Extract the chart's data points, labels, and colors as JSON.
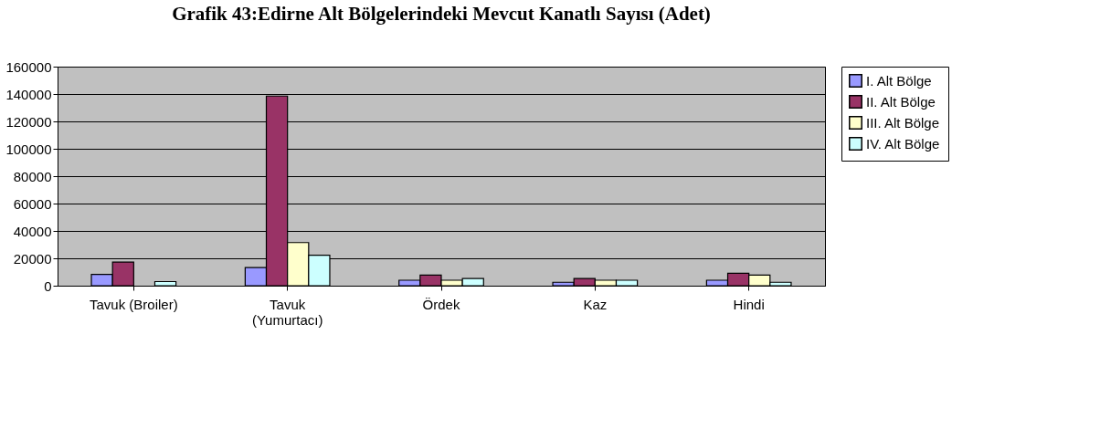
{
  "chart_data": {
    "type": "bar",
    "title": "Grafik 43:Edirne Alt Bölgelerindeki Mevcut Kanatlı Sayısı (Adet)",
    "categories": [
      "Tavuk (Broiler)",
      "Tavuk\n(Yumurtacı)",
      "Ördek",
      "Kaz",
      "Hindi"
    ],
    "series": [
      {
        "name": "I. Alt Bölge",
        "color": "#9999ff",
        "values": [
          8200,
          13300,
          4000,
          2500,
          4000
        ]
      },
      {
        "name": "II. Alt Bölge",
        "color": "#993366",
        "values": [
          17300,
          138500,
          7800,
          5300,
          9100
        ]
      },
      {
        "name": "III. Alt Bölge",
        "color": "#ffffcc",
        "values": [
          null,
          31500,
          4000,
          4000,
          7800
        ]
      },
      {
        "name": "IV. Alt Bölge",
        "color": "#ccffff",
        "values": [
          3000,
          22200,
          5300,
          4000,
          2500
        ]
      }
    ],
    "ylim": [
      0,
      160000
    ],
    "yticks": [
      0,
      20000,
      40000,
      60000,
      80000,
      100000,
      120000,
      140000,
      160000
    ],
    "grid": "y",
    "legend": "right"
  }
}
